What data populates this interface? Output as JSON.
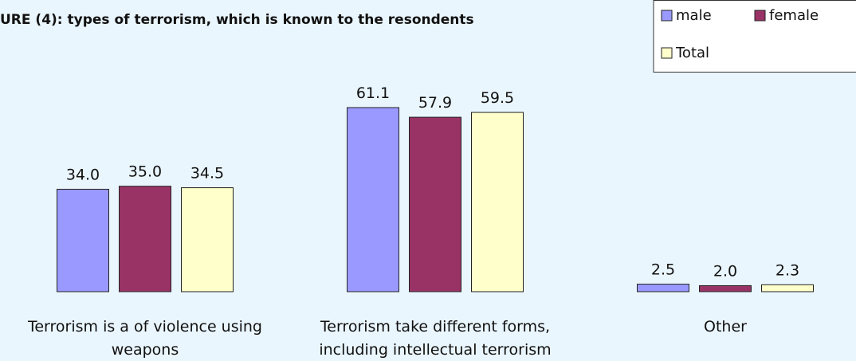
{
  "chart_data": {
    "type": "bar",
    "title": "URE (4): types of terrorism, which is known to the resondents",
    "categories": [
      "Terrorism is a of violence using weapons",
      "Terrorism take different forms, including intellectual terrorism",
      "Other"
    ],
    "series": [
      {
        "name": "male",
        "color": "#9999ff",
        "values": [
          34,
          61.1,
          2.5
        ],
        "value_labels": [
          "34.0",
          "61.1",
          "2.5"
        ]
      },
      {
        "name": "female",
        "color": "#993366",
        "values": [
          35,
          57.9,
          2
        ],
        "value_labels": [
          "35.0",
          "57.9",
          "2.0"
        ]
      },
      {
        "name": "Total",
        "color": "#ffffcc",
        "values": [
          34.5,
          59.5,
          2.3
        ],
        "value_labels": [
          "34.5",
          "59.5",
          "2.3"
        ]
      }
    ]
  }
}
